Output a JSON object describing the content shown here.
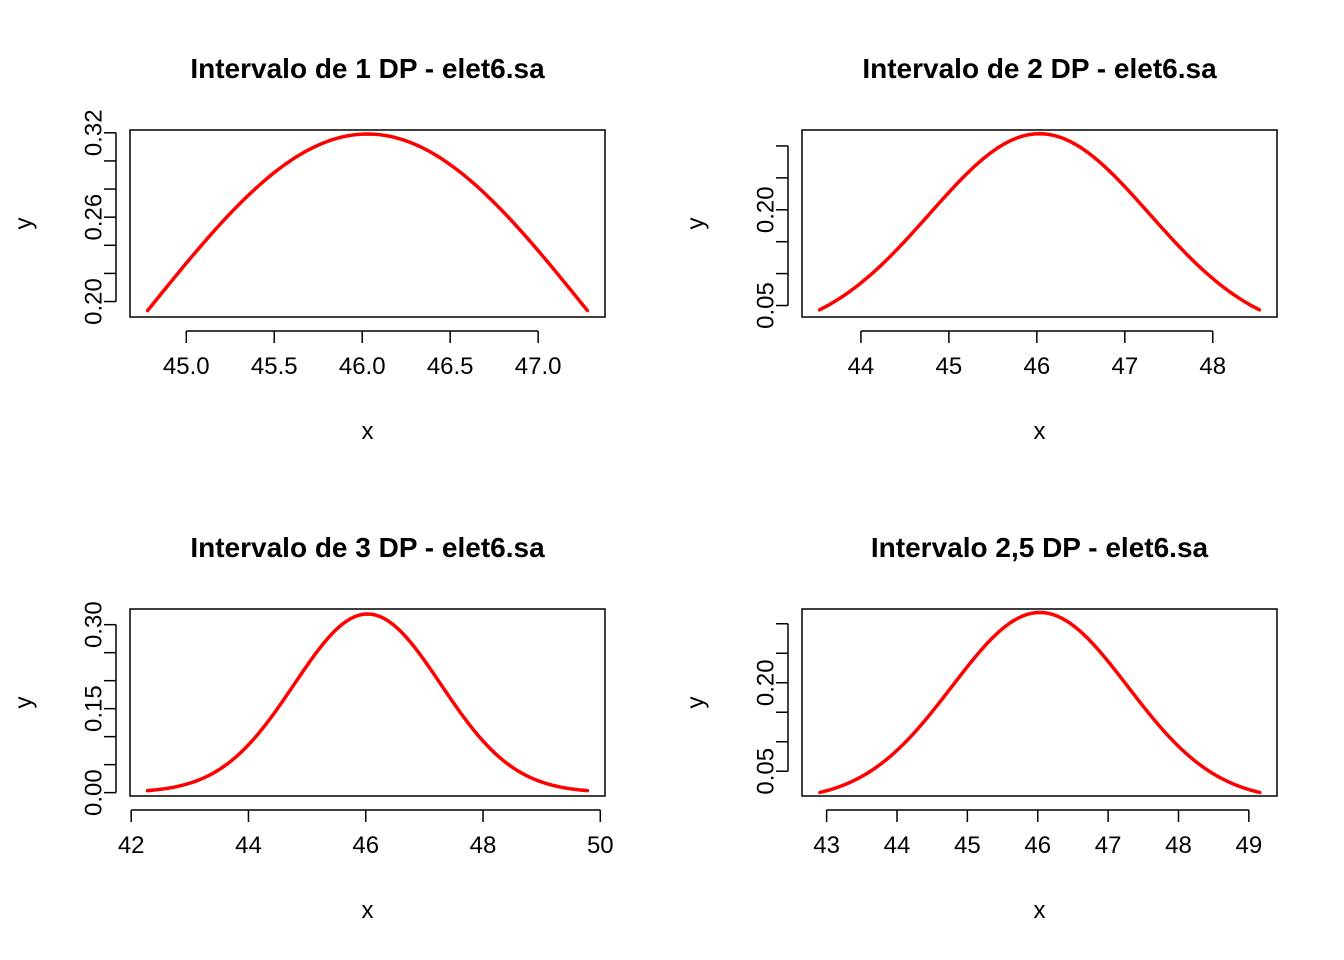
{
  "figure": {
    "background": "#ffffff",
    "line_color": "#ff0000"
  },
  "chart_data": [
    {
      "type": "line",
      "title": "Intervalo de 1 DP - elet6.sa",
      "xlabel": "x",
      "ylabel": "y",
      "xlim": [
        44.68,
        47.38
      ],
      "ylim": [
        0.189,
        0.322
      ],
      "x_ticks": [
        45.0,
        45.5,
        46.0,
        46.5,
        47.0
      ],
      "x_tick_labels": [
        "45.0",
        "45.5",
        "46.0",
        "46.5",
        "47.0"
      ],
      "y_ticks": [
        0.2,
        0.22,
        0.24,
        0.26,
        0.28,
        0.3,
        0.32
      ],
      "y_tick_labels": [
        "0.20",
        "",
        "",
        "0.26",
        "",
        "",
        "0.32"
      ],
      "series": [
        {
          "color": "#ff0000",
          "distribution": "normal",
          "mean": 46.03,
          "sd": 1.25,
          "x_range": [
            44.78,
            47.28
          ]
        }
      ]
    },
    {
      "type": "line",
      "title": "Intervalo de 2 DP - elet6.sa",
      "xlabel": "x",
      "ylabel": "y",
      "xlim": [
        43.33,
        48.73
      ],
      "ylim": [
        0.032,
        0.325
      ],
      "x_ticks": [
        44,
        45,
        46,
        47,
        48
      ],
      "x_tick_labels": [
        "44",
        "45",
        "46",
        "47",
        "48"
      ],
      "y_ticks": [
        0.05,
        0.1,
        0.15,
        0.2,
        0.25,
        0.3
      ],
      "y_tick_labels": [
        "0.05",
        "",
        "",
        "0.20",
        "",
        ""
      ],
      "series": [
        {
          "color": "#ff0000",
          "distribution": "normal",
          "mean": 46.03,
          "sd": 1.25,
          "x_range": [
            43.53,
            48.53
          ]
        }
      ]
    },
    {
      "type": "line",
      "title": "Intervalo de 3 DP - elet6.sa",
      "xlabel": "x",
      "ylabel": "y",
      "xlim": [
        41.98,
        50.08
      ],
      "ylim": [
        -0.006,
        0.328
      ],
      "x_ticks": [
        42,
        44,
        46,
        48,
        50
      ],
      "x_tick_labels": [
        "42",
        "44",
        "46",
        "48",
        "50"
      ],
      "y_ticks": [
        0.0,
        0.05,
        0.1,
        0.15,
        0.2,
        0.25,
        0.3
      ],
      "y_tick_labels": [
        "0.00",
        "",
        "",
        "0.15",
        "",
        "",
        "0.30"
      ],
      "series": [
        {
          "color": "#ff0000",
          "distribution": "normal",
          "mean": 46.03,
          "sd": 1.25,
          "x_range": [
            42.28,
            49.78
          ]
        }
      ]
    },
    {
      "type": "line",
      "title": "Intervalo 2,5 DP - elet6.sa",
      "xlabel": "x",
      "ylabel": "y",
      "xlim": [
        42.65,
        49.4
      ],
      "ylim": [
        0.008,
        0.325
      ],
      "x_ticks": [
        43,
        44,
        45,
        46,
        47,
        48,
        49
      ],
      "x_tick_labels": [
        "43",
        "44",
        "45",
        "46",
        "47",
        "48",
        "49"
      ],
      "y_ticks": [
        0.05,
        0.1,
        0.15,
        0.2,
        0.25,
        0.3
      ],
      "y_tick_labels": [
        "0.05",
        "",
        "",
        "0.20",
        "",
        ""
      ],
      "series": [
        {
          "color": "#ff0000",
          "distribution": "normal",
          "mean": 46.03,
          "sd": 1.25,
          "x_range": [
            42.905,
            49.155
          ]
        }
      ]
    }
  ]
}
